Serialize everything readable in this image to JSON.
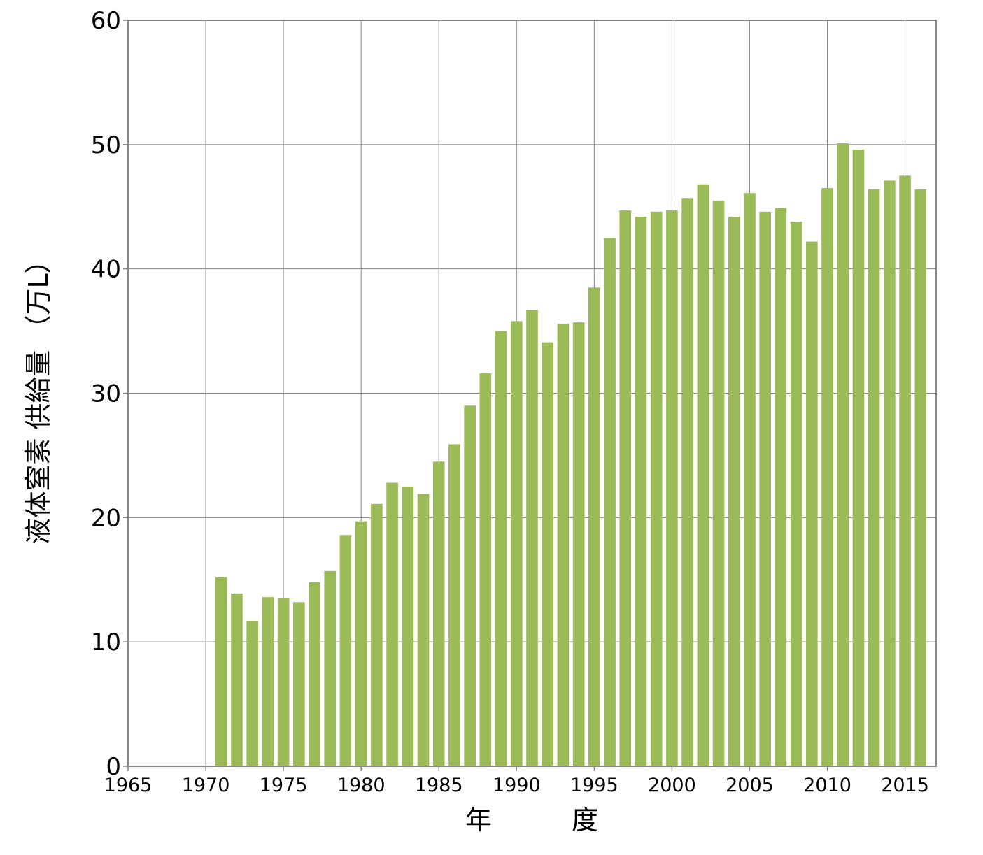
{
  "chart_data": {
    "type": "bar",
    "xlabel": "年　　　度",
    "ylabel": "液体窒素 供給量 （万L）",
    "ylim": [
      0,
      60
    ],
    "xlim": [
      1965,
      2017
    ],
    "y_ticks": [
      0,
      10,
      20,
      30,
      40,
      50,
      60
    ],
    "x_ticks": [
      1965,
      1970,
      1975,
      1980,
      1985,
      1990,
      1995,
      2000,
      2005,
      2010,
      2015
    ],
    "grid": true,
    "bar_color": "#9bbb59",
    "x": [
      1971,
      1972,
      1973,
      1974,
      1975,
      1976,
      1977,
      1978,
      1979,
      1980,
      1981,
      1982,
      1983,
      1984,
      1985,
      1986,
      1987,
      1988,
      1989,
      1990,
      1991,
      1992,
      1993,
      1994,
      1995,
      1996,
      1997,
      1998,
      1999,
      2000,
      2001,
      2002,
      2003,
      2004,
      2005,
      2006,
      2007,
      2008,
      2009,
      2010,
      2011,
      2012,
      2013,
      2014,
      2015,
      2016
    ],
    "values": [
      15.2,
      13.9,
      11.7,
      13.6,
      13.5,
      13.2,
      14.8,
      15.7,
      18.6,
      19.7,
      21.1,
      22.8,
      22.5,
      21.9,
      24.5,
      25.9,
      29.0,
      31.6,
      35.0,
      35.8,
      36.7,
      34.1,
      35.6,
      35.7,
      38.5,
      42.5,
      44.7,
      44.2,
      44.6,
      44.7,
      45.7,
      46.8,
      45.5,
      44.2,
      46.1,
      44.6,
      44.9,
      43.8,
      42.2,
      46.5,
      50.1,
      49.6,
      46.4,
      47.1,
      47.5,
      46.4
    ]
  }
}
